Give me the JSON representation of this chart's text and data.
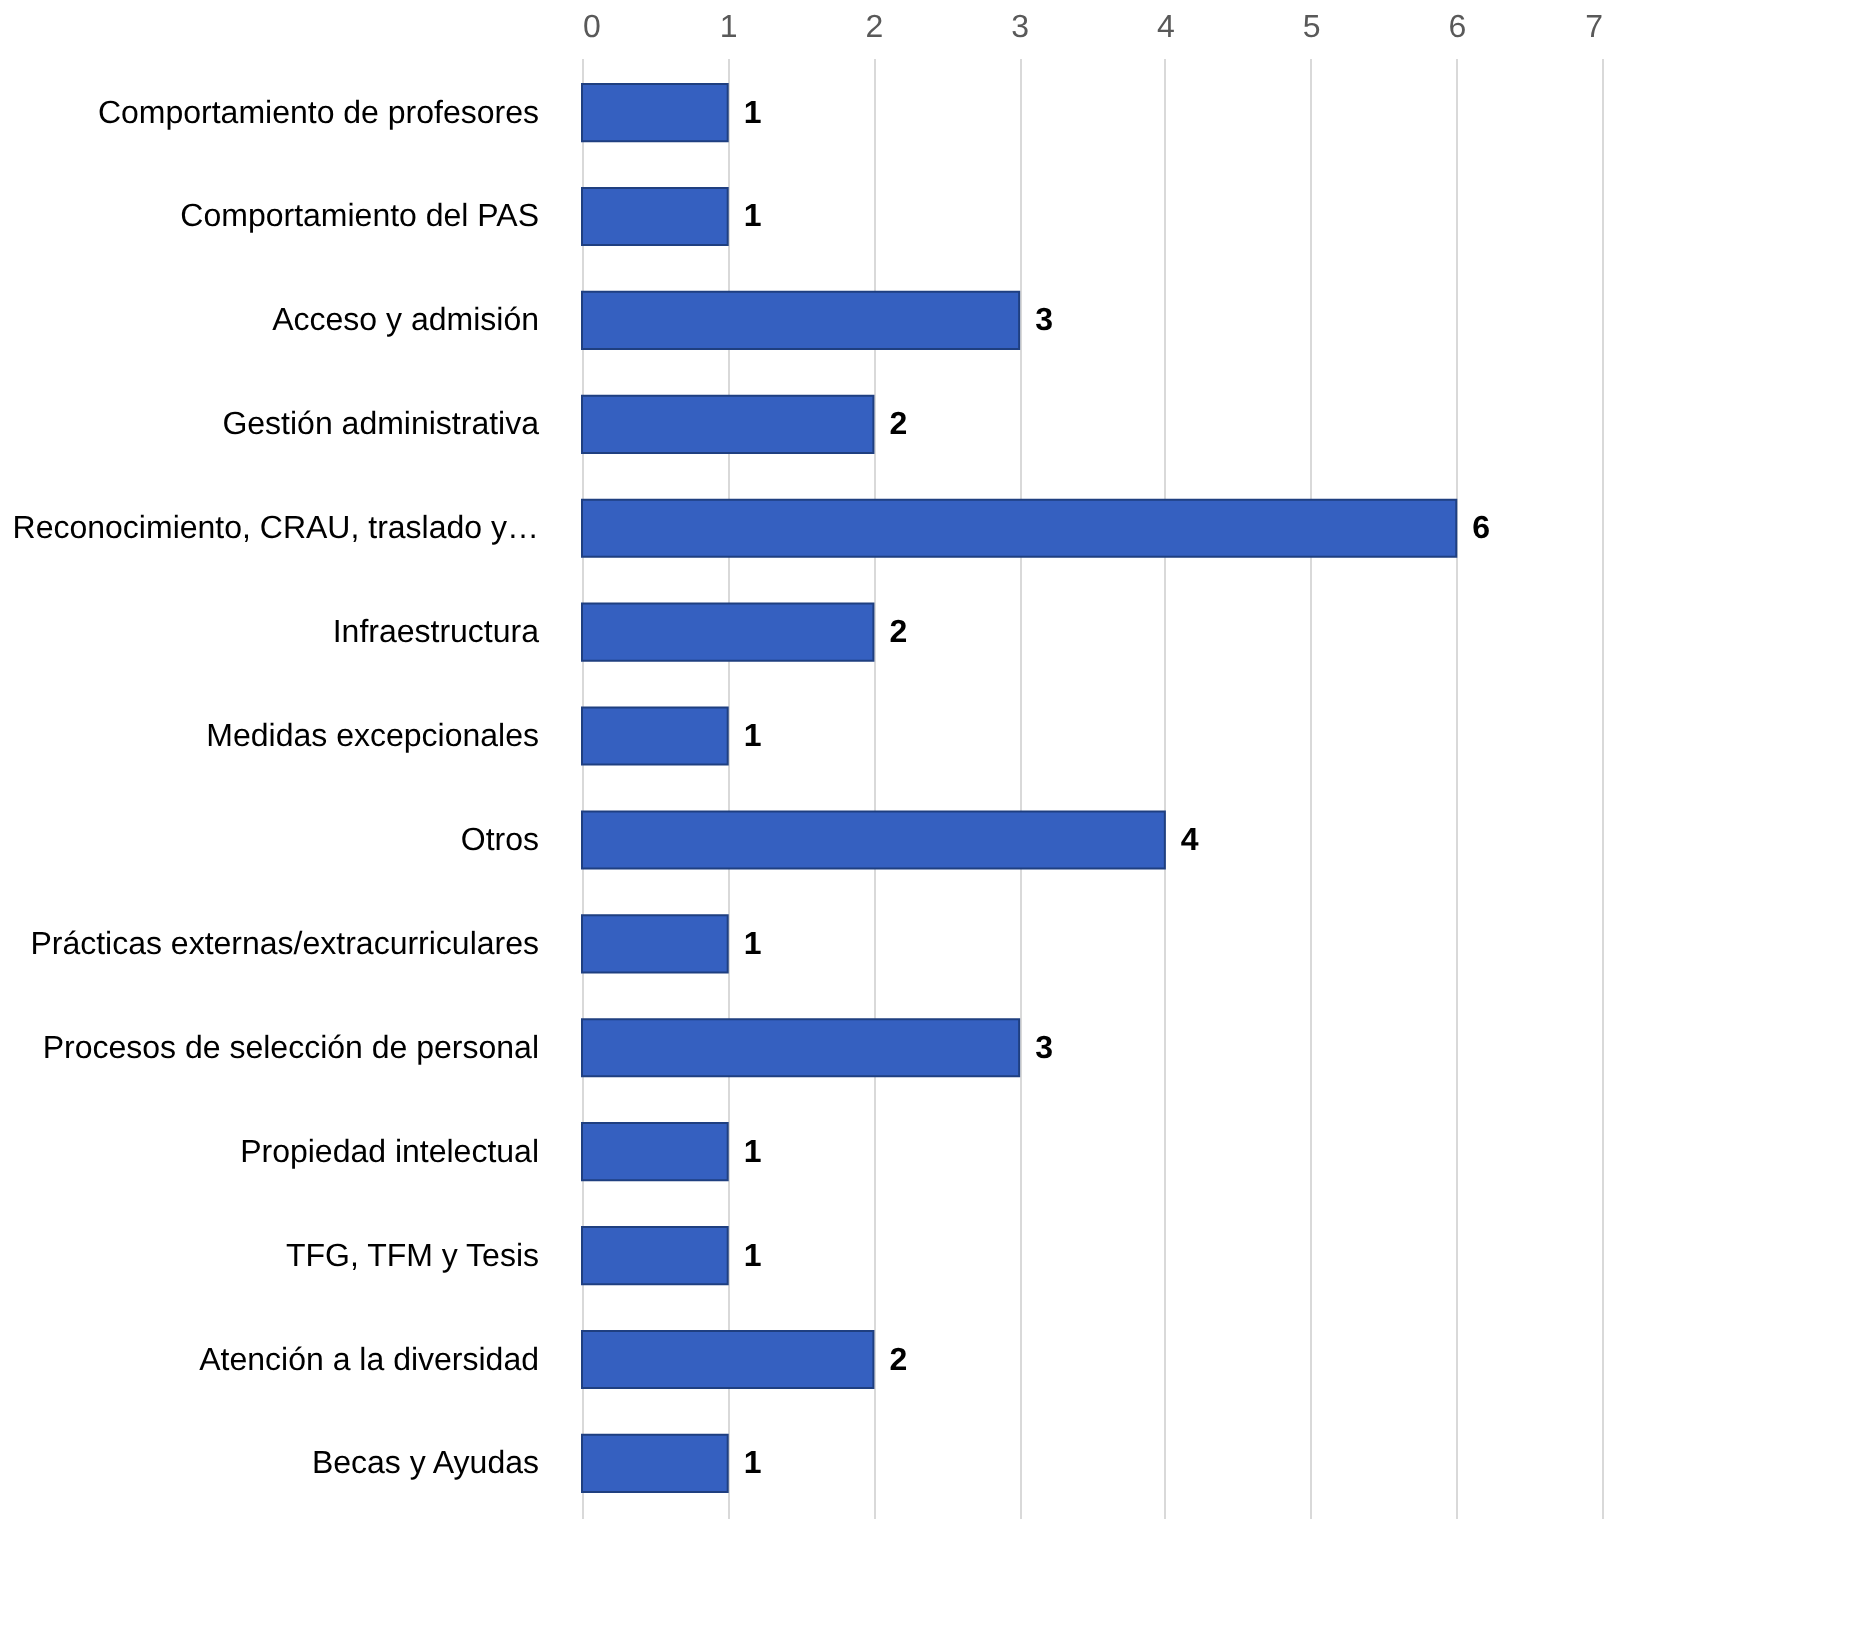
{
  "chart_data": {
    "type": "bar",
    "orientation": "horizontal",
    "categories": [
      "Comportamiento de profesores",
      "Comportamiento del PAS",
      "Acceso y admisión",
      "Gestión administrativa",
      "Reconocimiento, CRAU, traslado y…",
      "Infraestructura",
      "Medidas excepcionales",
      "Otros",
      "Prácticas externas/extracurriculares",
      "Procesos de selección de personal",
      "Propiedad intelectual",
      "TFG, TFM y Tesis",
      "Atención a la diversidad",
      "Becas y Ayudas"
    ],
    "values": [
      1,
      1,
      3,
      2,
      6,
      2,
      1,
      4,
      1,
      3,
      1,
      1,
      2,
      1
    ],
    "color": "#3560c0",
    "xlim": [
      0,
      7
    ],
    "xticks": [
      0,
      1,
      2,
      3,
      4,
      5,
      6,
      7
    ],
    "grid": "x",
    "data_labels": true
  }
}
